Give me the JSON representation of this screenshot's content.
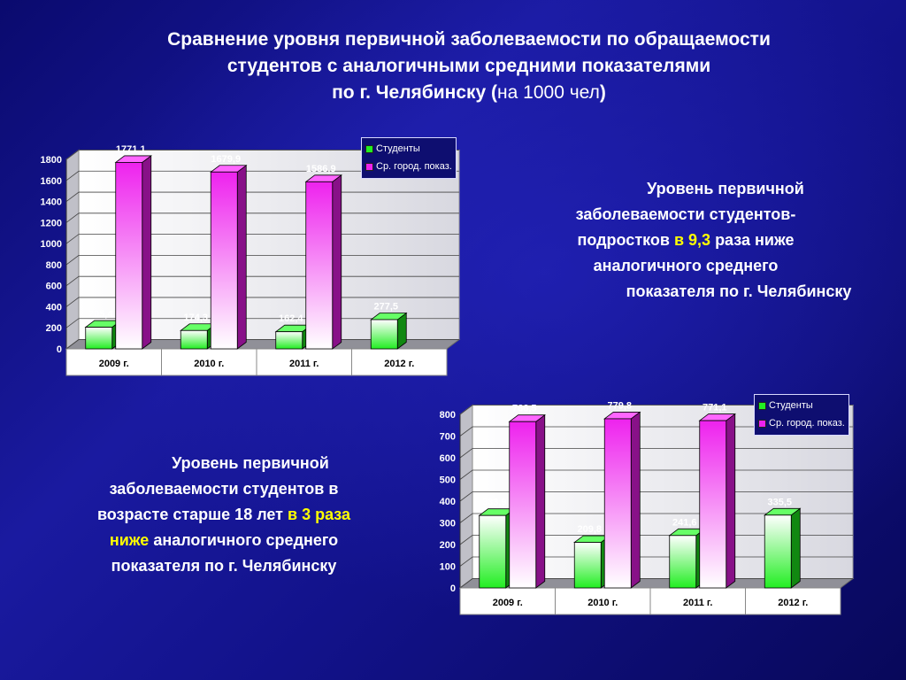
{
  "title": {
    "line1": "Сравнение уровня первичной заболеваемости по обращаемости",
    "line2": "студентов  с аналогичными средними показателями",
    "line3_bold": "по г. Челябинску  (",
    "line3_normal": "на 1000 чел",
    "line3_close": ")"
  },
  "note_top": {
    "l1": "Уровень первичной",
    "l2": "заболеваемости студентов-",
    "l3a": "подростков ",
    "l3b": "в 9,3",
    "l3c": " раза ниже",
    "l4": "аналогичного среднего",
    "l5": "показателя по г. Челябинску"
  },
  "note_bottom": {
    "l1": "Уровень первичной",
    "l2": "заболеваемости студентов в",
    "l3a": "возрасте старше 18 лет  ",
    "l3b": "в 3 раза",
    "l4a": "ниже",
    "l4b": " аналогичного среднего",
    "l5": "показателя по г. Челябинску"
  },
  "colors": {
    "students": "#22ee22",
    "city": "#ee22ee"
  },
  "chart_data": [
    {
      "type": "bar",
      "categories": [
        "2009 г.",
        "2010 г.",
        "2011 г.",
        "2012 г."
      ],
      "series": [
        {
          "name": "Студенты",
          "values": [
            205.4,
            174.3,
            162.4,
            277.5
          ],
          "labels": [
            "205,4",
            "174,3",
            "162,4",
            "277,5"
          ]
        },
        {
          "name": "Ср. город. показ.",
          "values": [
            1771.1,
            1679.9,
            1586.9,
            null
          ],
          "labels": [
            "1771,1",
            "1679,9",
            "1586,9",
            ""
          ]
        }
      ],
      "ylim": [
        0,
        1800
      ],
      "yticks": [
        "0",
        "200",
        "400",
        "600",
        "800",
        "1000",
        "1200",
        "1400",
        "1600",
        "1800"
      ],
      "grid": true,
      "legend": "top-right"
    },
    {
      "type": "bar",
      "categories": [
        "2009 г.",
        "2010 г.",
        "2011 г.",
        "2012 г."
      ],
      "series": [
        {
          "name": "Студенты",
          "values": [
            333.9,
            209.8,
            241.6,
            335.5
          ],
          "labels": [
            "333,9",
            "209,8",
            "241,6",
            "335,5"
          ]
        },
        {
          "name": "Ср. город. показ.",
          "values": [
            766.5,
            779.8,
            771.1,
            null
          ],
          "labels": [
            "766,5",
            "779,8",
            "771,1",
            ""
          ]
        }
      ],
      "ylim": [
        0,
        800
      ],
      "yticks": [
        "0",
        "100",
        "200",
        "300",
        "400",
        "500",
        "600",
        "700",
        "800"
      ],
      "grid": true,
      "legend": "top-right"
    }
  ]
}
